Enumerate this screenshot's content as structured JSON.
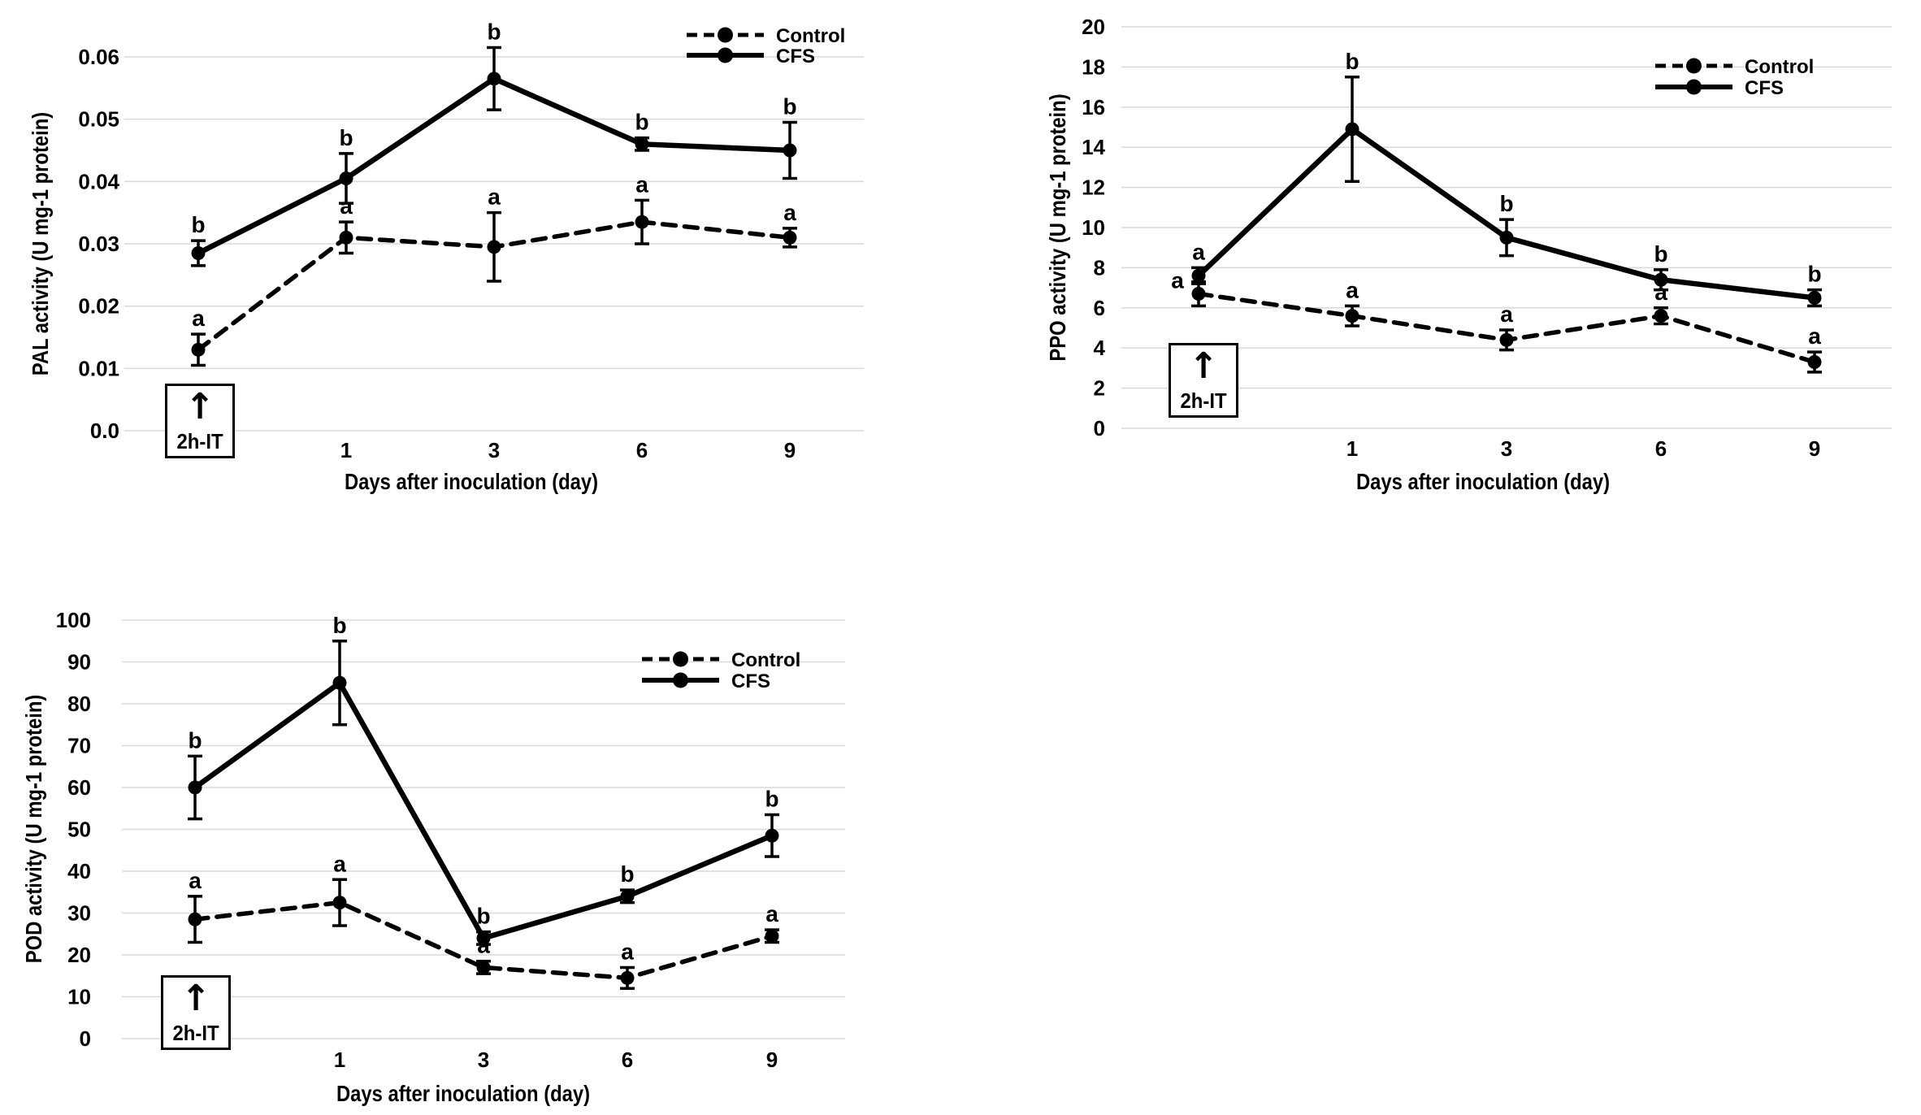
{
  "figure": {
    "background": "#ffffff",
    "text_color": "#000000",
    "gridline_color": "#d9d9d9",
    "series_color": "#000000"
  },
  "chart_data": [
    {
      "id": "pal",
      "type": "line",
      "title": "",
      "ylabel": "PAL activity (U mg-1 protein)",
      "xlabel": "Days after inoculation (day)",
      "categories": [
        "2h-IT",
        "1",
        "3",
        "6",
        "9"
      ],
      "x_tick_labels": [
        "",
        "1",
        "3",
        "6",
        "9"
      ],
      "ylim": [
        0,
        0.06
      ],
      "yticks": [
        0,
        0.01,
        0.02,
        0.03,
        0.04,
        0.05,
        0.06
      ],
      "ytick_labels": [
        "0.0",
        "0.01",
        "0.02",
        "0.03",
        "0.04",
        "0.05",
        "0.06"
      ],
      "grid": true,
      "legend_position": "top-right-inside",
      "annotation": {
        "label": "2h-IT",
        "arrow": "↑"
      },
      "series": [
        {
          "name": "Control",
          "style": "dashed",
          "values": [
            0.013,
            0.031,
            0.0295,
            0.0335,
            0.031
          ],
          "errors": [
            0.0025,
            0.0025,
            0.0055,
            0.0035,
            0.0015
          ],
          "letters": [
            "a",
            "a",
            "a",
            "a",
            "a"
          ]
        },
        {
          "name": "CFS",
          "style": "solid",
          "values": [
            0.0285,
            0.0405,
            0.0565,
            0.046,
            0.045
          ],
          "errors": [
            0.002,
            0.004,
            0.005,
            0.001,
            0.0045
          ],
          "letters": [
            "b",
            "b",
            "b",
            "b",
            "b"
          ]
        }
      ]
    },
    {
      "id": "ppo",
      "type": "line",
      "title": "",
      "ylabel": "PPO activity (U mg-1 protein)",
      "xlabel": "Days after inoculation (day)",
      "categories": [
        "2h-IT",
        "1",
        "3",
        "6",
        "9"
      ],
      "x_tick_labels": [
        "",
        "1",
        "3",
        "6",
        "9"
      ],
      "ylim": [
        0,
        20
      ],
      "yticks": [
        0,
        2,
        4,
        6,
        8,
        10,
        12,
        14,
        16,
        18,
        20
      ],
      "ytick_labels": [
        "0",
        "2",
        "4",
        "6",
        "8",
        "10",
        "12",
        "14",
        "16",
        "18",
        "20"
      ],
      "grid": true,
      "legend_position": "top-right-inside",
      "annotation": {
        "label": "2h-IT",
        "arrow": "↑"
      },
      "series": [
        {
          "name": "Control",
          "style": "dashed",
          "values": [
            6.7,
            5.6,
            4.4,
            5.6,
            3.3
          ],
          "errors": [
            0.6,
            0.5,
            0.5,
            0.4,
            0.5
          ],
          "letters": [
            "a",
            "a",
            "a",
            "a",
            "a"
          ],
          "letter_dx": [
            -26,
            0,
            0,
            0,
            0
          ],
          "letter_dy": [
            18,
            0,
            0,
            0,
            0
          ]
        },
        {
          "name": "CFS",
          "style": "solid",
          "values": [
            7.6,
            14.9,
            9.5,
            7.4,
            6.5
          ],
          "errors": [
            0.4,
            2.6,
            0.9,
            0.5,
            0.4
          ],
          "letters": [
            "a",
            "b",
            "b",
            "b",
            "b"
          ]
        }
      ]
    },
    {
      "id": "pod",
      "type": "line",
      "title": "",
      "ylabel": "POD activity (U mg-1 protein)",
      "xlabel": "Days after inoculation (day)",
      "categories": [
        "2h-IT",
        "1",
        "3",
        "6",
        "9"
      ],
      "x_tick_labels": [
        "",
        "1",
        "3",
        "6",
        "9"
      ],
      "ylim": [
        0,
        100
      ],
      "yticks": [
        0,
        10,
        20,
        30,
        40,
        50,
        60,
        70,
        80,
        90,
        100
      ],
      "ytick_labels": [
        "0",
        "10",
        "20",
        "30",
        "40",
        "50",
        "60",
        "70",
        "80",
        "90",
        "100"
      ],
      "grid": true,
      "legend_position": "top-right-inside",
      "annotation": {
        "label": "2h-IT",
        "arrow": "↑"
      },
      "series": [
        {
          "name": "Control",
          "style": "dashed",
          "values": [
            28.5,
            32.5,
            17,
            14.5,
            24.5
          ],
          "errors": [
            5.5,
            5.5,
            1.5,
            2.5,
            1.5
          ],
          "letters": [
            "a",
            "a",
            "a",
            "a",
            "a"
          ]
        },
        {
          "name": "CFS",
          "style": "solid",
          "values": [
            60,
            85,
            24,
            34,
            48.5
          ],
          "errors": [
            7.5,
            10,
            1.5,
            1.5,
            5
          ],
          "letters": [
            "b",
            "b",
            "b",
            "b",
            "b"
          ]
        }
      ]
    }
  ]
}
